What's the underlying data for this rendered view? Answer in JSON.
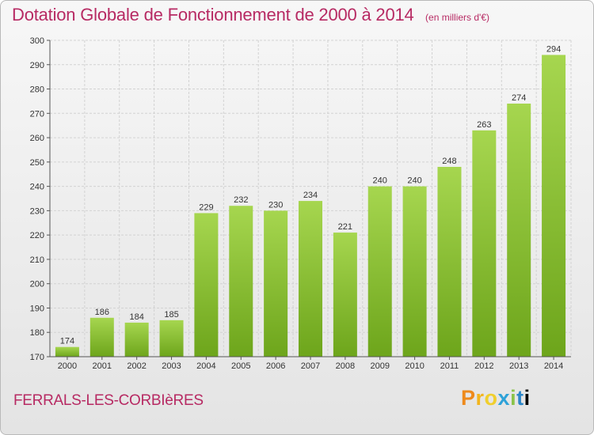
{
  "header": {
    "title": "Dotation Globale de Fonctionnement de 2000 à 2014",
    "subtitle": "(en milliers d'€)"
  },
  "footer": {
    "commune": "FERRALS-LES-CORBIèRES",
    "logo": "Proxiti"
  },
  "colors": {
    "title": "#b72a63",
    "bar_light": "#a6d64f",
    "bar_dark": "#6da51b",
    "grid": "#d2d2d2"
  },
  "chart_data": {
    "type": "bar",
    "title": "Dotation Globale de Fonctionnement de 2000 à 2014",
    "subtitle": "(en milliers d'€)",
    "xlabel": "",
    "ylabel": "",
    "categories": [
      "2000",
      "2001",
      "2002",
      "2003",
      "2004",
      "2005",
      "2006",
      "2007",
      "2008",
      "2009",
      "2010",
      "2011",
      "2012",
      "2013",
      "2014"
    ],
    "values": [
      174,
      186,
      184,
      185,
      229,
      232,
      230,
      234,
      221,
      240,
      240,
      248,
      263,
      274,
      294
    ],
    "ylim": [
      170,
      300
    ],
    "yticks": [
      170,
      180,
      190,
      200,
      210,
      220,
      230,
      240,
      250,
      260,
      270,
      280,
      290,
      300
    ],
    "grid": true,
    "data_labels": true,
    "legend": "none"
  }
}
